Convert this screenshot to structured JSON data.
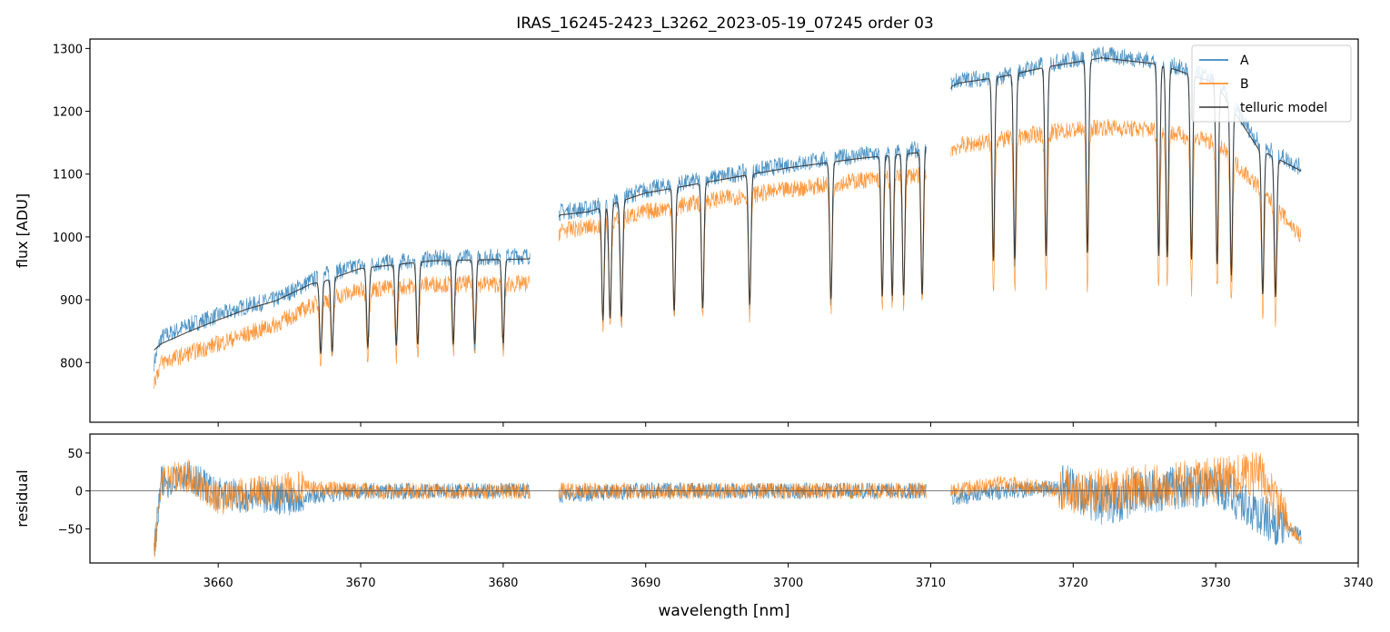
{
  "chart_data": {
    "type": "line",
    "title": "IRAS_16245-2423_L3262_2023-05-19_07245  order 03",
    "xlabel": "wavelength [nm]",
    "xlim": [
      3651,
      3740
    ],
    "x_ticks": [
      "3660",
      "3670",
      "3680",
      "3690",
      "3700",
      "3710",
      "3720",
      "3730",
      "3740"
    ],
    "colors": {
      "A": "#1f77b4",
      "B": "#ff7f0e",
      "telluric": "#333333",
      "zero_line": "#555555"
    },
    "legend_placement": "top-right",
    "panels": [
      {
        "name": "flux",
        "ylabel": "flux [ADU]",
        "ylim": [
          705,
          1315
        ],
        "y_ticks": [
          "800",
          "900",
          "1000",
          "1100",
          "1200",
          "1300"
        ],
        "series": [
          {
            "name": "A",
            "color": "#1f77b4",
            "x": [
              3655.5,
              3656,
              3658,
              3660,
              3662,
              3664,
              3666.5,
              3667.5,
              3670,
              3675,
              3681.8,
              3684,
              3686,
              3690,
              3695,
              3700,
              3705,
              3709.5,
              3711.5,
              3712,
              3715,
              3718,
              3722,
              3726,
              3730,
              3733,
              3736
            ],
            "y": [
              800,
              840,
              860,
              875,
              890,
              900,
              930,
              940,
              955,
              965,
              970,
              1040,
              1045,
              1075,
              1095,
              1115,
              1130,
              1140,
              1245,
              1250,
              1255,
              1275,
              1290,
              1280,
              1250,
              1150,
              1110
            ]
          },
          {
            "name": "B",
            "color": "#ff7f0e",
            "x": [
              3655.5,
              3656,
              3658,
              3660,
              3662,
              3664,
              3666.5,
              3667.5,
              3670,
              3675,
              3681.8,
              3684,
              3686,
              3690,
              3695,
              3700,
              3705,
              3709.5,
              3711.5,
              3712,
              3715,
              3718,
              3722,
              3726,
              3730,
              3733,
              3736
            ],
            "y": [
              770,
              800,
              815,
              830,
              845,
              860,
              890,
              900,
              915,
              925,
              925,
              1010,
              1015,
              1040,
              1060,
              1075,
              1090,
              1100,
              1140,
              1145,
              1155,
              1165,
              1175,
              1170,
              1150,
              1080,
              1000
            ]
          },
          {
            "name": "telluric model",
            "color": "#333333",
            "x": [
              3655.5,
              3656,
              3658,
              3660,
              3662,
              3664,
              3666.5,
              3667.5,
              3670,
              3675,
              3681.8,
              3684,
              3686,
              3690,
              3695,
              3700,
              3705,
              3709.5,
              3711.5,
              3712,
              3715,
              3718,
              3722,
              3726,
              3730,
              3733,
              3736
            ],
            "y": [
              820,
              830,
              850,
              868,
              885,
              898,
              925,
              930,
              950,
              962,
              965,
              1035,
              1040,
              1070,
              1090,
              1110,
              1125,
              1135,
              1240,
              1245,
              1255,
              1270,
              1285,
              1275,
              1245,
              1140,
              1105
            ]
          }
        ]
      },
      {
        "name": "residual",
        "ylabel": "residual",
        "ylim": [
          -95,
          75
        ],
        "y_ticks": [
          "50",
          "0",
          "−50"
        ],
        "series": [
          {
            "name": "A",
            "color": "#1f77b4",
            "x": [
              3655.5,
              3656,
              3658,
              3660,
              3665,
              3670,
              3681.8,
              3684,
              3690,
              3700,
              3709.5,
              3711.5,
              3715,
              3720,
              3722,
              3725,
              3730,
              3733,
              3736
            ],
            "y": [
              -80,
              10,
              20,
              -5,
              -10,
              0,
              0,
              -5,
              0,
              0,
              0,
              -10,
              0,
              5,
              -20,
              0,
              10,
              -30,
              -60
            ]
          },
          {
            "name": "B",
            "color": "#ff7f0e",
            "x": [
              3655.5,
              3656,
              3658,
              3660,
              3665,
              3670,
              3681.8,
              3684,
              3690,
              3700,
              3709.5,
              3711.5,
              3715,
              3720,
              3722,
              3725,
              3730,
              3733,
              3736
            ],
            "y": [
              -85,
              15,
              20,
              -10,
              5,
              0,
              0,
              0,
              0,
              0,
              0,
              0,
              10,
              0,
              0,
              5,
              15,
              25,
              -70
            ]
          }
        ]
      }
    ],
    "legend": [
      "A",
      "B",
      "telluric model"
    ]
  }
}
